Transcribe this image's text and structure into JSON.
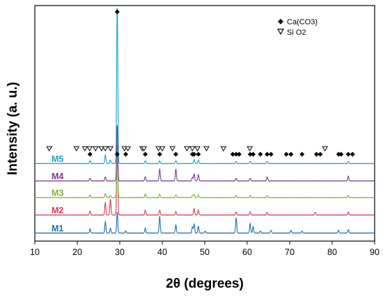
{
  "chart_data": {
    "type": "line",
    "xlabel": "2θ (degrees)",
    "ylabel": "Intensity (a. u.)",
    "xlim": [
      10,
      90
    ],
    "x_ticks": [
      "10",
      "20",
      "30",
      "40",
      "50",
      "60",
      "70",
      "80",
      "90"
    ],
    "y_ticks": "none",
    "legend": [
      {
        "label": "Ca(CO3)",
        "marker": "diamond-filled"
      },
      {
        "label": "Si O2",
        "marker": "triangle-down-open"
      }
    ],
    "legend_position": "top-right",
    "series": [
      {
        "name": "M1",
        "color": "#1F6FA8",
        "offset": 0,
        "peaks": [
          [
            23.0,
            6
          ],
          [
            26.6,
            16
          ],
          [
            27.8,
            7
          ],
          [
            29.4,
            30
          ],
          [
            31.4,
            3
          ],
          [
            36.0,
            7
          ],
          [
            39.4,
            24
          ],
          [
            43.2,
            12
          ],
          [
            47.1,
            9
          ],
          [
            47.5,
            13
          ],
          [
            48.5,
            10
          ],
          [
            50.1,
            3
          ],
          [
            57.4,
            22
          ],
          [
            60.7,
            14
          ],
          [
            61.4,
            9
          ],
          [
            63.1,
            3
          ],
          [
            65.6,
            4
          ],
          [
            70.3,
            4
          ],
          [
            72.9,
            3
          ],
          [
            81.5,
            4
          ],
          [
            83.8,
            5
          ]
        ]
      },
      {
        "name": "M2",
        "color": "#D83A57",
        "offset": 1,
        "peaks": [
          [
            23.0,
            6
          ],
          [
            26.6,
            18
          ],
          [
            27.8,
            23
          ],
          [
            29.4,
            100
          ],
          [
            36.0,
            7
          ],
          [
            39.4,
            7
          ],
          [
            43.2,
            5
          ],
          [
            47.5,
            9
          ],
          [
            48.5,
            7
          ],
          [
            57.4,
            4
          ],
          [
            60.7,
            5
          ],
          [
            64.7,
            4
          ],
          [
            76.0,
            4
          ],
          [
            83.8,
            4
          ]
        ]
      },
      {
        "name": "M3",
        "color": "#7DB636",
        "offset": 2,
        "peaks": [
          [
            23.0,
            4
          ],
          [
            26.6,
            6
          ],
          [
            27.8,
            3
          ],
          [
            29.4,
            70
          ],
          [
            36.0,
            5
          ],
          [
            39.4,
            5
          ],
          [
            43.2,
            4
          ],
          [
            47.1,
            3
          ],
          [
            47.5,
            5
          ],
          [
            48.5,
            4
          ],
          [
            57.4,
            3
          ],
          [
            60.7,
            3
          ],
          [
            64.7,
            3
          ],
          [
            83.8,
            3
          ]
        ]
      },
      {
        "name": "M4",
        "color": "#7B3A8E",
        "offset": 3,
        "peaks": [
          [
            23.0,
            4
          ],
          [
            26.6,
            6
          ],
          [
            29.4,
            80
          ],
          [
            36.0,
            6
          ],
          [
            39.4,
            17
          ],
          [
            43.2,
            17
          ],
          [
            47.1,
            5
          ],
          [
            47.5,
            10
          ],
          [
            48.5,
            9
          ],
          [
            57.4,
            4
          ],
          [
            60.7,
            4
          ],
          [
            64.7,
            6
          ],
          [
            83.8,
            7
          ]
        ]
      },
      {
        "name": "M5",
        "color": "#1AA3C8",
        "offset": 4,
        "peaks": [
          [
            23.0,
            4
          ],
          [
            26.6,
            12
          ],
          [
            27.8,
            5
          ],
          [
            29.4,
            240
          ],
          [
            36.0,
            4
          ],
          [
            39.4,
            4
          ],
          [
            43.2,
            4
          ],
          [
            47.5,
            6
          ],
          [
            48.5,
            5
          ],
          [
            57.4,
            3
          ],
          [
            60.7,
            3
          ],
          [
            64.7,
            3
          ],
          [
            83.8,
            3
          ]
        ]
      }
    ],
    "caco3_markers_x": [
      23.0,
      29.4,
      31.4,
      36.0,
      39.4,
      43.2,
      47.1,
      47.5,
      48.5,
      56.6,
      57.4,
      58.1,
      60.7,
      61.4,
      63.1,
      64.7,
      65.6,
      69.2,
      70.3,
      72.9,
      76.3,
      77.2,
      81.5,
      82.1,
      83.8,
      84.8
    ],
    "sio2_markers_x": [
      13.4,
      19.8,
      21.8,
      22.9,
      24.3,
      25.7,
      26.6,
      27.8,
      31.1,
      31.9,
      35.3,
      35.7,
      39.1,
      40.0,
      42.4,
      45.8,
      47.1,
      48.3,
      50.4,
      54.4,
      60.6,
      78.3
    ]
  }
}
